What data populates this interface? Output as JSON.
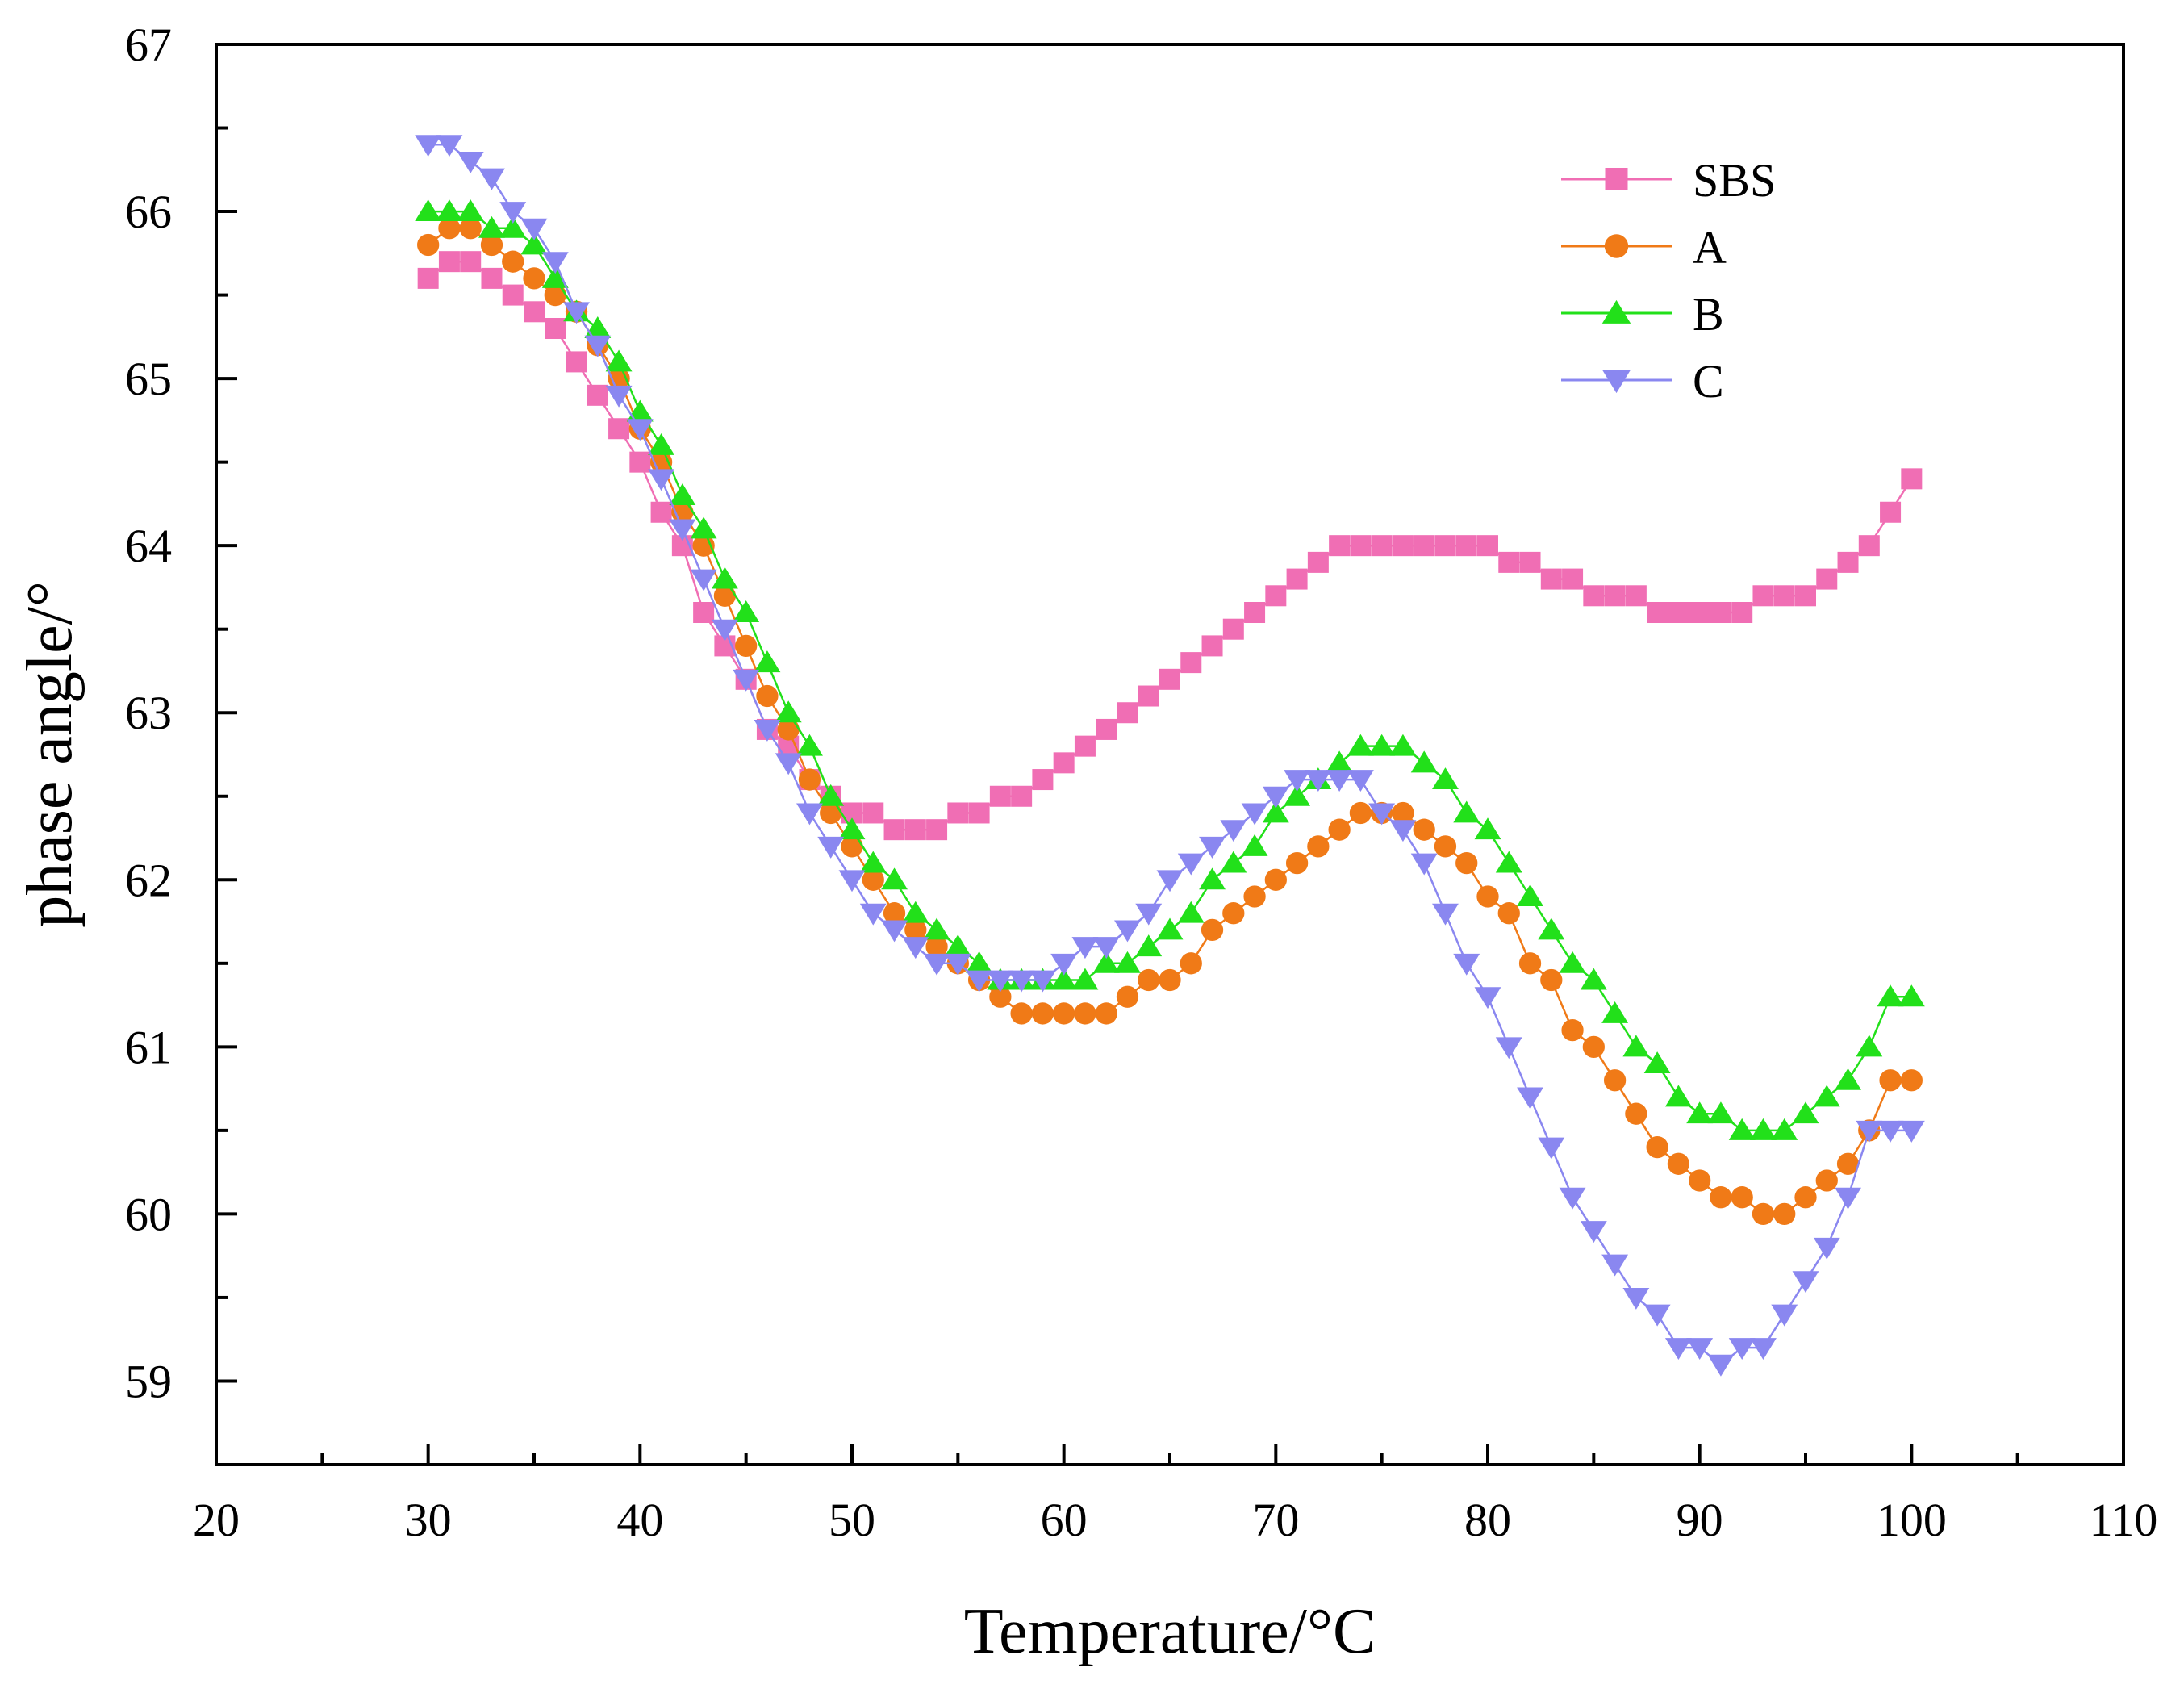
{
  "chart_data": {
    "type": "line",
    "title": "",
    "xlabel": "Temperature/°C",
    "ylabel": "phase angle/°",
    "xlim": [
      20,
      110
    ],
    "ylim": [
      58.5,
      67
    ],
    "xticks": [
      20,
      30,
      40,
      50,
      60,
      70,
      80,
      90,
      100,
      110
    ],
    "yticks": [
      59,
      60,
      61,
      62,
      63,
      64,
      65,
      66,
      67
    ],
    "legend_position": "top-right",
    "x": [
      30,
      31,
      32,
      33,
      34,
      35,
      36,
      37,
      38,
      39,
      40,
      41,
      42,
      43,
      44,
      45,
      46,
      47,
      48,
      49,
      50,
      51,
      52,
      53,
      54,
      55,
      56,
      57,
      58,
      59,
      60,
      61,
      62,
      63,
      64,
      65,
      66,
      67,
      68,
      69,
      70,
      71,
      72,
      73,
      74,
      75,
      76,
      77,
      78,
      79,
      80,
      81,
      82,
      83,
      84,
      85,
      86,
      87,
      88,
      89,
      90,
      91,
      92,
      93,
      94,
      95,
      96,
      97,
      98,
      99,
      100
    ],
    "series": [
      {
        "name": "SBS",
        "color": "#F06EB4",
        "marker": "square",
        "values": [
          65.6,
          65.7,
          65.7,
          65.6,
          65.5,
          65.4,
          65.3,
          65.1,
          64.9,
          64.7,
          64.5,
          64.2,
          64.0,
          63.6,
          63.4,
          63.2,
          62.9,
          62.8,
          62.6,
          62.5,
          62.4,
          62.4,
          62.3,
          62.3,
          62.3,
          62.4,
          62.4,
          62.5,
          62.5,
          62.6,
          62.7,
          62.8,
          62.9,
          63.0,
          63.1,
          63.2,
          63.3,
          63.4,
          63.5,
          63.6,
          63.7,
          63.8,
          63.9,
          64.0,
          64.0,
          64.0,
          64.0,
          64.0,
          64.0,
          64.0,
          64.0,
          63.9,
          63.9,
          63.8,
          63.8,
          63.7,
          63.7,
          63.7,
          63.6,
          63.6,
          63.6,
          63.6,
          63.6,
          63.7,
          63.7,
          63.7,
          63.8,
          63.9,
          64.0,
          64.2,
          64.4
        ]
      },
      {
        "name": "A",
        "color": "#F07A17",
        "marker": "circle",
        "values": [
          65.8,
          65.9,
          65.9,
          65.8,
          65.7,
          65.6,
          65.5,
          65.4,
          65.2,
          65.0,
          64.7,
          64.5,
          64.2,
          64.0,
          63.7,
          63.4,
          63.1,
          62.9,
          62.6,
          62.4,
          62.2,
          62.0,
          61.8,
          61.7,
          61.6,
          61.5,
          61.4,
          61.3,
          61.2,
          61.2,
          61.2,
          61.2,
          61.2,
          61.3,
          61.4,
          61.4,
          61.5,
          61.7,
          61.8,
          61.9,
          62.0,
          62.1,
          62.2,
          62.3,
          62.4,
          62.4,
          62.4,
          62.3,
          62.2,
          62.1,
          61.9,
          61.8,
          61.5,
          61.4,
          61.1,
          61.0,
          60.8,
          60.6,
          60.4,
          60.3,
          60.2,
          60.1,
          60.1,
          60.0,
          60.0,
          60.1,
          60.2,
          60.3,
          60.5,
          60.8,
          60.8
        ]
      },
      {
        "name": "B",
        "color": "#22E01A",
        "marker": "triangle-up",
        "values": [
          66.0,
          66.0,
          66.0,
          65.9,
          65.9,
          65.8,
          65.6,
          65.4,
          65.3,
          65.1,
          64.8,
          64.6,
          64.3,
          64.1,
          63.8,
          63.6,
          63.3,
          63.0,
          62.8,
          62.5,
          62.3,
          62.1,
          62.0,
          61.8,
          61.7,
          61.6,
          61.5,
          61.4,
          61.4,
          61.4,
          61.4,
          61.4,
          61.5,
          61.5,
          61.6,
          61.7,
          61.8,
          62.0,
          62.1,
          62.2,
          62.4,
          62.5,
          62.6,
          62.7,
          62.8,
          62.8,
          62.8,
          62.7,
          62.6,
          62.4,
          62.3,
          62.1,
          61.9,
          61.7,
          61.5,
          61.4,
          61.2,
          61.0,
          60.9,
          60.7,
          60.6,
          60.6,
          60.5,
          60.5,
          60.5,
          60.6,
          60.7,
          60.8,
          61.0,
          61.3,
          61.3
        ]
      },
      {
        "name": "C",
        "color": "#8A87F0",
        "marker": "triangle-down",
        "values": [
          66.4,
          66.4,
          66.3,
          66.2,
          66.0,
          65.9,
          65.7,
          65.4,
          65.2,
          64.9,
          64.7,
          64.4,
          64.1,
          63.8,
          63.5,
          63.2,
          62.9,
          62.7,
          62.4,
          62.2,
          62.0,
          61.8,
          61.7,
          61.6,
          61.5,
          61.5,
          61.4,
          61.4,
          61.4,
          61.4,
          61.5,
          61.6,
          61.6,
          61.7,
          61.8,
          62.0,
          62.1,
          62.2,
          62.3,
          62.4,
          62.5,
          62.6,
          62.6,
          62.6,
          62.6,
          62.4,
          62.3,
          62.1,
          61.8,
          61.5,
          61.3,
          61.0,
          60.7,
          60.4,
          60.1,
          59.9,
          59.7,
          59.5,
          59.4,
          59.2,
          59.2,
          59.1,
          59.2,
          59.2,
          59.4,
          59.6,
          59.8,
          60.1,
          60.5,
          60.5,
          60.5
        ]
      }
    ]
  }
}
